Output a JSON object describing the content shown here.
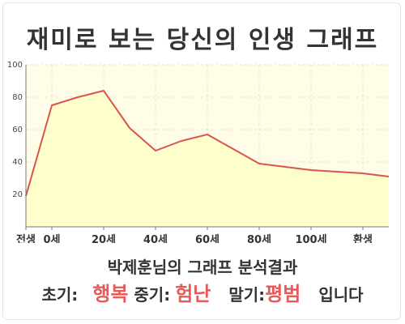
{
  "title": "재미로 보는 당신의 인생 그래프",
  "chart_data": {
    "type": "area",
    "x": [
      0,
      1,
      2,
      3,
      4,
      5,
      6,
      7,
      8,
      9,
      10,
      11,
      12,
      13,
      14
    ],
    "values": [
      19,
      75,
      80,
      84,
      61,
      47,
      53,
      57,
      48,
      39,
      37,
      35,
      34,
      33,
      31
    ],
    "xticks": [
      {
        "pos": 0,
        "label": "전생"
      },
      {
        "pos": 1,
        "label": "0세"
      },
      {
        "pos": 3,
        "label": "20세"
      },
      {
        "pos": 5,
        "label": "40세"
      },
      {
        "pos": 7,
        "label": "60세"
      },
      {
        "pos": 9,
        "label": "80세"
      },
      {
        "pos": 11,
        "label": "100세"
      },
      {
        "pos": 13,
        "label": "환생"
      }
    ],
    "yticks": [
      20,
      40,
      60,
      80,
      100
    ],
    "ylim": [
      0,
      100
    ],
    "xlim": [
      0,
      14
    ],
    "grid": true,
    "colors": {
      "line": "#d9534f",
      "fill": "#ffffcc",
      "plot_bg": "#fffde8",
      "grid": "#e6e2c4"
    }
  },
  "subtitle": "박제훈님의 그래프 분석결과",
  "result": {
    "early_label": "초기:",
    "early_value": "행복",
    "mid_label": "중기:",
    "mid_value": "험난",
    "late_label": "말기:",
    "late_value": "평범",
    "suffix": "입니다"
  }
}
